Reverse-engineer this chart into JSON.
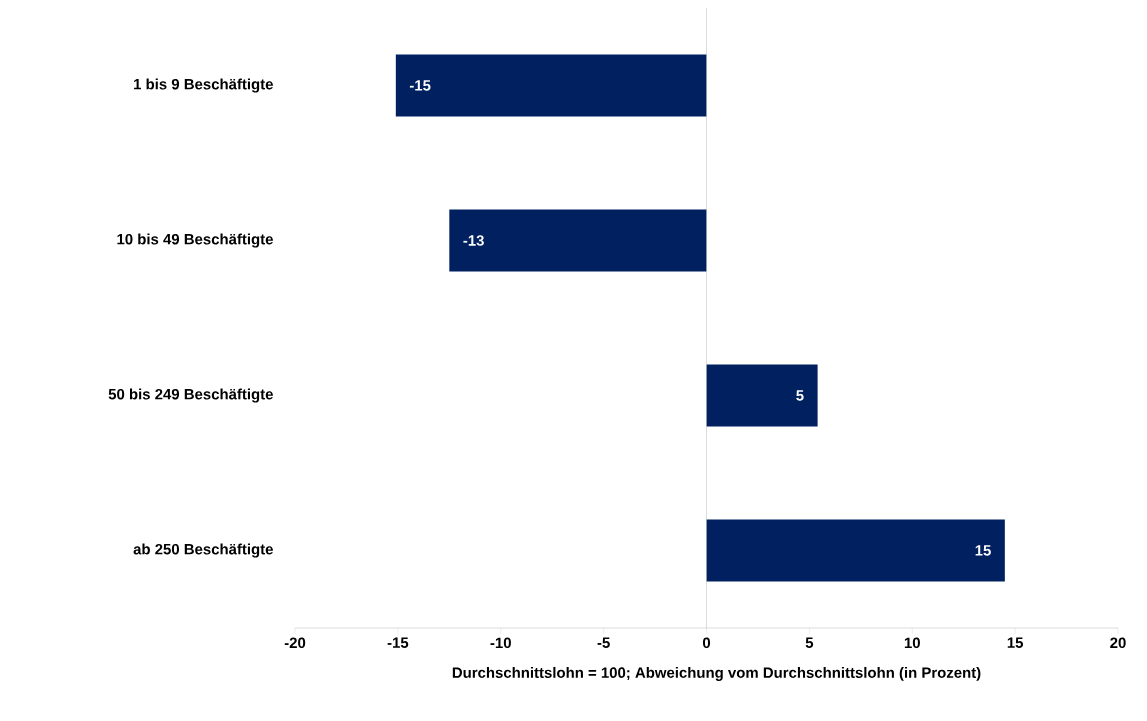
{
  "chart_data": {
    "type": "bar",
    "orientation": "horizontal",
    "categories": [
      "1 bis 9 Beschäftigte",
      "10 bis 49 Beschäftigte",
      "50 bis 249 Beschäftigte",
      "ab 250 Beschäftigte"
    ],
    "values": [
      -15.1,
      -12.5,
      5.4,
      14.5
    ],
    "value_labels": [
      "-15",
      "-13",
      "5",
      "15"
    ],
    "color": "#002060",
    "xlim": [
      -20,
      20
    ],
    "xticks": [
      -20,
      -15,
      -10,
      -5,
      0,
      5,
      10,
      15,
      20
    ],
    "xlabel": "Durchschnittslohn = 100; Abweichung vom Durchschnittslohn (in Prozent)"
  }
}
